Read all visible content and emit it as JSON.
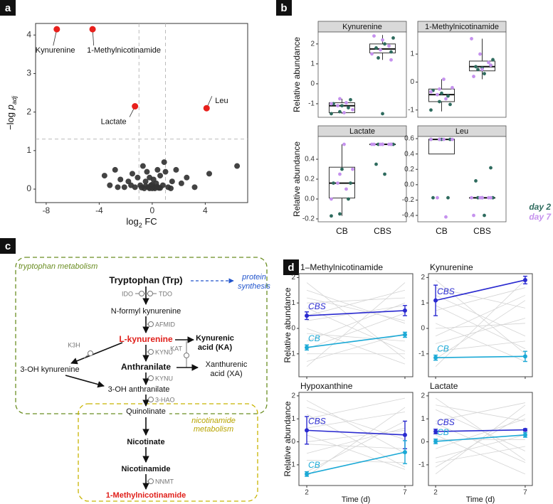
{
  "panel_labels": [
    "a",
    "b",
    "c",
    "d"
  ],
  "chart_data": [
    {
      "type": "scatter",
      "xlabel": [
        "log",
        "2",
        " FC"
      ],
      "ylabel": [
        "−log ",
        "p",
        "adj"
      ],
      "xlim": [
        -8.8,
        7.2
      ],
      "xticks": [
        -8,
        -4,
        0,
        4
      ],
      "ylim": [
        -0.35,
        4.3
      ],
      "yticks": [
        0,
        1,
        2,
        3,
        4
      ],
      "vlines": [
        -1,
        1
      ],
      "hline": 1.3,
      "color": "#333333",
      "x": [
        -3.6,
        -3.2,
        -2.8,
        -2.4,
        -2.1,
        -1.8,
        -1.5,
        -1.3,
        -1.1,
        -0.9,
        -0.7,
        -0.6,
        -0.5,
        -0.4,
        -0.3,
        -0.2,
        -0.1,
        0,
        0.1,
        0.2,
        0.3,
        0.4,
        0.5,
        0.6,
        0.8,
        1,
        1.2,
        1.5,
        1.8,
        2.2,
        2.6,
        3.2,
        4.3,
        6.4,
        -0.5,
        -0.2,
        0,
        0.2,
        0.4,
        -0.8,
        0.6,
        -1.6,
        1.4,
        -2.6,
        0.9
      ],
      "y": [
        0.35,
        0.1,
        0.5,
        0.25,
        0.05,
        0.2,
        0.4,
        0.05,
        0.3,
        0.1,
        0.6,
        0.02,
        0.2,
        0.45,
        0.05,
        0.3,
        0.1,
        0.02,
        0.25,
        0.05,
        0.15,
        0.5,
        0.03,
        0.35,
        0.1,
        0.45,
        0.05,
        0.2,
        0.5,
        0.15,
        0.3,
        0.05,
        0.4,
        0.6,
        0.08,
        0.02,
        0.12,
        0.02,
        0.06,
        0.04,
        0.03,
        0.1,
        0.02,
        0.05,
        0.7
      ],
      "highlights": {
        "color": "#e8201c",
        "names": [
          "Kynurenine",
          "1-Methylnicotinamide",
          "Lactate",
          "Leu"
        ],
        "x": [
          -7.2,
          -4.5,
          -1.3,
          4.1
        ],
        "y": [
          4.15,
          4.15,
          2.15,
          2.1
        ]
      }
    },
    {
      "type": "box",
      "ylabel": "Relative abundance",
      "categories": [
        "CB",
        "CBS"
      ],
      "groups": [
        {
          "name": "day 2",
          "color": "#2e6b5e"
        },
        {
          "name": "day 7",
          "color": "#c592ee"
        }
      ],
      "facets": [
        {
          "title": "Kynurenine",
          "ylim": [
            -1.68,
            2.6
          ],
          "yticks": [
            -1,
            0,
            1,
            2
          ],
          "boxes": [
            {
              "whislo": -1.5,
              "q1": -1.45,
              "med": -1.1,
              "q3": -0.95,
              "whishi": -0.75
            },
            {
              "whislo": 1.2,
              "q1": 1.55,
              "med": 1.75,
              "q3": 2.0,
              "whishi": 2.45
            }
          ],
          "points": [
            [
              [
                -1.5,
                -1.4,
                -1.2,
                -1.0,
                -1.1,
                -0.8
              ],
              [
                -1.45,
                -1.3,
                -1.1,
                -0.95,
                -1.0,
                -0.75
              ]
            ],
            [
              [
                -1.5,
                1.6,
                1.8,
                2.0,
                2.3,
                1.3
              ],
              [
                1.5,
                1.7,
                1.9,
                2.4,
                2.2,
                1.2
              ]
            ]
          ]
        },
        {
          "title": "1-Methylnicotinamide",
          "ylim": [
            -1.26,
            1.79
          ],
          "yticks": [
            -1,
            0,
            1
          ],
          "boxes": [
            {
              "whislo": -1.05,
              "q1": -0.7,
              "med": -0.45,
              "q3": -0.25,
              "whishi": 0.1
            },
            {
              "whislo": 0.1,
              "q1": 0.4,
              "med": 0.55,
              "q3": 0.75,
              "whishi": 1.55
            }
          ],
          "points": [
            [
              [
                -1.0,
                -0.7,
                -0.5,
                -0.3,
                -0.4,
                -0.8
              ],
              [
                0.1,
                -0.2,
                -0.45,
                -0.6,
                -0.35,
                -0.25
              ]
            ],
            [
              [
                0.5,
                0.6,
                0.55,
                0.3,
                0.8,
                0.45
              ],
              [
                1.55,
                1.0,
                0.7,
                0.2,
                0.45,
                0.6
              ]
            ]
          ]
        },
        {
          "title": "Lactate",
          "ylim": [
            -0.229,
            0.629
          ],
          "yticks": [
            -0.2,
            {
              "value": 0,
              "label": "0.0"
            },
            0.2,
            0.4
          ],
          "boxes": [
            {
              "whislo": -0.17,
              "q1": 0.01,
              "med": 0.16,
              "q3": 0.32,
              "whishi": 0.55
            },
            {
              "whislo": 0.55,
              "q1": 0.55,
              "med": 0.55,
              "q3": 0.55,
              "whishi": 0.55
            }
          ],
          "points": [
            [
              [
                -0.17,
                -0.15,
                0.0,
                0.16,
                0.3,
                0.16
              ],
              [
                0.55,
                0.3,
                0.16,
                0.1,
                0.0,
                0.25
              ]
            ],
            [
              [
                0.55,
                0.55,
                0.35,
                0.25,
                0.55,
                0.55
              ],
              [
                0.55,
                0.55,
                0.55,
                0.55,
                0.55,
                0.55
              ]
            ]
          ]
        },
        {
          "title": "Leu",
          "ylim": [
            -0.483,
            0.628
          ],
          "yticks": [
            -0.4,
            -0.2,
            {
              "value": 0,
              "label": "0.0"
            },
            0.2,
            0.4,
            0.6
          ],
          "boxes": [
            {
              "whislo": 0.4,
              "q1": 0.4,
              "med": 0.59,
              "q3": 0.59,
              "whishi": 0.59
            },
            {
              "whislo": -0.17,
              "q1": -0.17,
              "med": -0.17,
              "q3": -0.17,
              "whishi": -0.17
            }
          ],
          "points": [
            [
              [
                0.59,
                0.59,
                -0.17,
                -0.17,
                0.59,
                0.59
              ],
              [
                0.59,
                0.59,
                -0.17,
                -0.42,
                0.59,
                0.59
              ]
            ],
            [
              [
                -0.17,
                0.22,
                0.05,
                -0.4,
                -0.17,
                -0.17
              ],
              [
                -0.17,
                -0.17,
                -0.17,
                -0.4,
                -0.17,
                -0.17
              ]
            ]
          ]
        }
      ]
    },
    {
      "type": "line",
      "xlabel": "Time (d)",
      "ylabel": "Relative abundance",
      "x": [
        2,
        7
      ],
      "xlim": [
        1.6,
        7.4
      ],
      "xticks": [
        2,
        7
      ],
      "series": [
        {
          "name": "CBS",
          "color": "#2a2ad0"
        },
        {
          "name": "CB",
          "color": "#1ba9d6"
        }
      ],
      "background_color": "#d4d4d4",
      "facets": [
        {
          "title": "1–Methylnicotinamide",
          "ylim": [
            -1.9,
            2.15
          ],
          "yticks": [
            -1,
            0,
            1,
            2
          ],
          "values": [
            [
              0.5,
              0.7
            ],
            [
              -0.75,
              -0.25
            ]
          ],
          "errors": [
            [
              0.15,
              0.2
            ],
            [
              0.1,
              0.1
            ]
          ],
          "background": [
            [
              1.8,
              -1.2
            ],
            [
              1.2,
              0.3
            ],
            [
              0.5,
              1.5
            ],
            [
              -0.5,
              1.0
            ],
            [
              -1.3,
              -0.2
            ],
            [
              0.8,
              -0.9
            ],
            [
              -0.8,
              0.6
            ],
            [
              1.5,
              0.2
            ],
            [
              0.0,
              -1.4
            ],
            [
              -1.5,
              1.8
            ],
            [
              1.0,
              1.2
            ],
            [
              -0.2,
              -0.5
            ],
            [
              0.3,
              0.9
            ],
            [
              -1.0,
              -1.0
            ]
          ]
        },
        {
          "title": "Kynurenine",
          "ylim": [
            -1.9,
            2.15
          ],
          "yticks": [
            -1,
            0,
            1,
            2
          ],
          "values": [
            [
              1.1,
              1.9
            ],
            [
              -1.15,
              -1.1
            ]
          ],
          "errors": [
            [
              0.6,
              0.15
            ],
            [
              0.1,
              0.2
            ]
          ],
          "background": [
            [
              1.9,
              -1.0
            ],
            [
              0.7,
              1.6
            ],
            [
              -0.6,
              0.4
            ],
            [
              1.3,
              -0.3
            ],
            [
              -1.2,
              1.1
            ],
            [
              0.2,
              -1.3
            ],
            [
              -0.9,
              -0.5
            ],
            [
              1.6,
              0.8
            ],
            [
              0.0,
              0.2
            ],
            [
              -1.5,
              1.9
            ],
            [
              0.9,
              -0.8
            ],
            [
              -0.3,
              1.3
            ]
          ]
        },
        {
          "title": "Hypoxanthine",
          "ylim": [
            -1.9,
            2.15
          ],
          "yticks": [
            -1,
            0,
            1,
            2
          ],
          "values": [
            [
              0.5,
              0.3
            ],
            [
              -1.4,
              -0.45
            ]
          ],
          "errors": [
            [
              0.6,
              0.6
            ],
            [
              0.1,
              0.5
            ]
          ],
          "background": [
            [
              1.8,
              -0.5
            ],
            [
              1.0,
              1.9
            ],
            [
              -0.5,
              0.6
            ],
            [
              0.3,
              -1.2
            ],
            [
              -1.3,
              0.9
            ],
            [
              1.5,
              0.1
            ],
            [
              -0.8,
              -0.9
            ],
            [
              0.6,
              1.3
            ],
            [
              -0.1,
              -0.3
            ],
            [
              -1.5,
              1.5
            ],
            [
              1.2,
              -1.1
            ],
            [
              0.0,
              0.5
            ]
          ]
        },
        {
          "title": "Lactate",
          "ylim": [
            -1.9,
            2.15
          ],
          "yticks": [
            -1,
            0,
            1,
            2
          ],
          "values": [
            [
              0.45,
              0.52
            ],
            [
              0.02,
              0.3
            ]
          ],
          "errors": [
            [
              0.1,
              0.05
            ],
            [
              0.1,
              0.1
            ]
          ],
          "background": [
            [
              1.9,
              -0.8
            ],
            [
              0.9,
              1.7
            ],
            [
              -0.7,
              0.3
            ],
            [
              1.4,
              -0.4
            ],
            [
              -1.1,
              1.2
            ],
            [
              0.3,
              -1.4
            ],
            [
              -0.9,
              -0.2
            ],
            [
              1.6,
              0.9
            ],
            [
              0.1,
              0.1
            ],
            [
              -1.4,
              1.6
            ],
            [
              0.8,
              -0.9
            ],
            [
              -0.3,
              1.0
            ]
          ]
        }
      ]
    }
  ],
  "diagram": {
    "regions": [
      "tryptophan metabolism",
      "nicotinamide",
      "metabolism"
    ],
    "nodes": [
      "Tryptophan (Trp)",
      "N-formyl kynurenine",
      "L-kynurenine",
      "Kynurenic",
      "acid (KA)",
      "Anthranilate",
      "Xanthurenic",
      "acid (XA)",
      "3-OH kynurenine",
      "3-OH anthranilate",
      "Quinolinate",
      "Nicotinate",
      "Nicotinamide",
      "1-Methylnicotinamide"
    ],
    "enzymes": [
      "IDO",
      "TDO",
      "AFMID",
      "KYNU",
      "K3H",
      "KAT",
      "KYNU",
      "3-HAO",
      "NNMT"
    ],
    "side": [
      "protein",
      "synthesis"
    ]
  }
}
